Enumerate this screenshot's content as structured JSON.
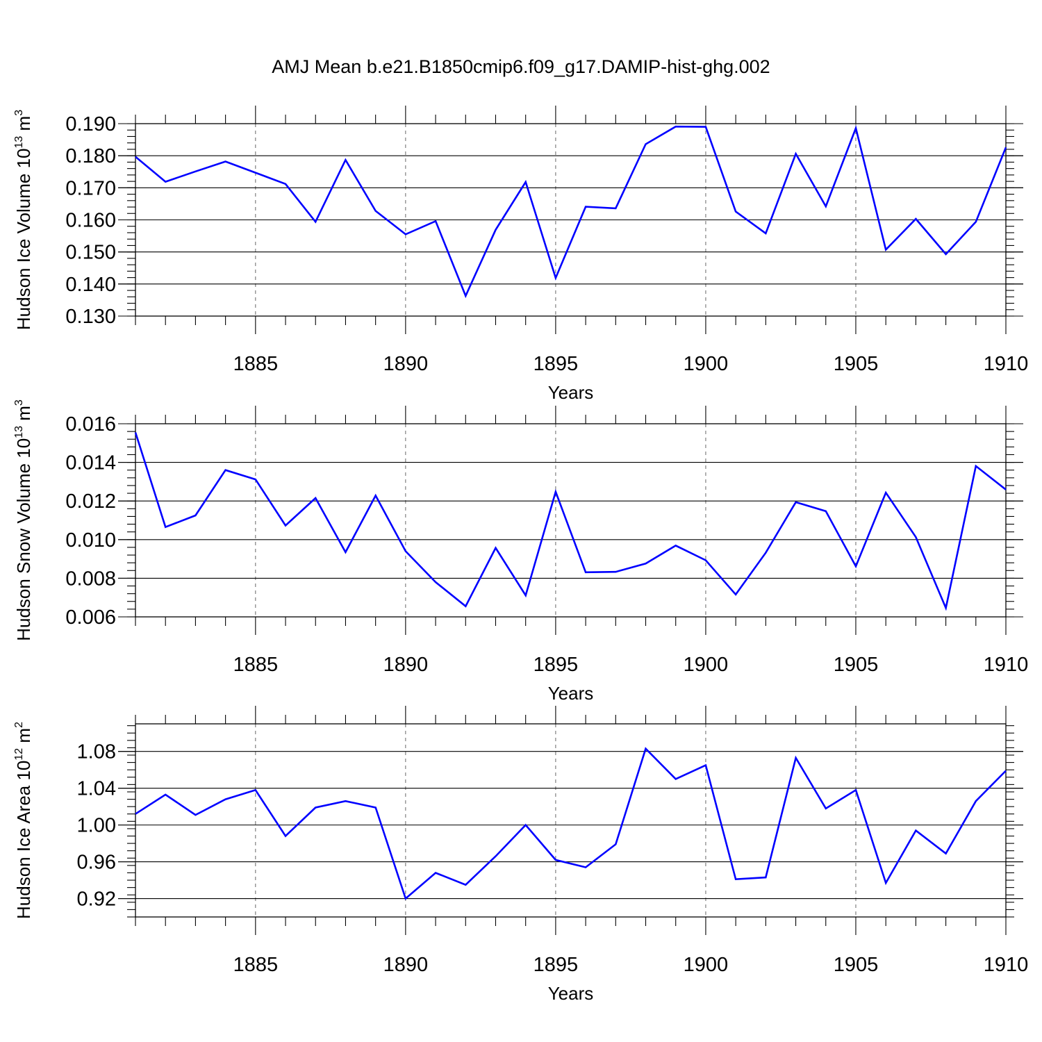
{
  "figure": {
    "title": "AMJ Mean b.e21.B1850cmip6.f09_g17.DAMIP-hist-ghg.002"
  },
  "chart_data": [
    {
      "type": "line",
      "title": "",
      "xlabel": "Years",
      "ylabel": "Hudson Ice Volume 10",
      "ylabel_sup": "13",
      "ylabel_unit": "m",
      "ylabel_unit_sup": "3",
      "xlim": [
        1881,
        1910
      ],
      "ylim": [
        0.13,
        0.19
      ],
      "x_ticks": [
        1885,
        1890,
        1895,
        1900,
        1905,
        1910
      ],
      "x_tick_labels": [
        "1885",
        "1890",
        "1895",
        "1900",
        "1905",
        "1910"
      ],
      "y_ticks": [
        0.13,
        0.14,
        0.15,
        0.16,
        0.17,
        0.18,
        0.19
      ],
      "y_tick_labels": [
        "0.130",
        "0.140",
        "0.150",
        "0.160",
        "0.170",
        "0.180",
        "0.190"
      ],
      "y_minor_step": 0.002,
      "grid": "vertical dashed at major x ticks",
      "color": "#0000ff",
      "x": [
        1881,
        1882,
        1883,
        1884,
        1885,
        1886,
        1887,
        1888,
        1889,
        1890,
        1891,
        1892,
        1893,
        1894,
        1895,
        1896,
        1897,
        1898,
        1899,
        1900,
        1901,
        1902,
        1903,
        1904,
        1905,
        1906,
        1907,
        1908,
        1909,
        1910
      ],
      "y": [
        0.1797,
        0.1719,
        0.1751,
        0.1782,
        0.1747,
        0.1712,
        0.1594,
        0.1787,
        0.1628,
        0.1555,
        0.1596,
        0.1363,
        0.1569,
        0.1718,
        0.1419,
        0.1641,
        0.1636,
        0.1836,
        0.1891,
        0.189,
        0.1626,
        0.1558,
        0.1806,
        0.1642,
        0.1886,
        0.1507,
        0.1603,
        0.1493,
        0.1594,
        0.1826
      ]
    },
    {
      "type": "line",
      "title": "",
      "xlabel": "Years",
      "ylabel": "Hudson Snow Volume 10",
      "ylabel_sup": "13",
      "ylabel_unit": "m",
      "ylabel_unit_sup": "3",
      "xlim": [
        1881,
        1910
      ],
      "ylim": [
        0.006,
        0.016
      ],
      "x_ticks": [
        1885,
        1890,
        1895,
        1900,
        1905,
        1910
      ],
      "x_tick_labels": [
        "1885",
        "1890",
        "1895",
        "1900",
        "1905",
        "1910"
      ],
      "y_ticks": [
        0.006,
        0.008,
        0.01,
        0.012,
        0.014,
        0.016
      ],
      "y_tick_labels": [
        "0.006",
        "0.008",
        "0.010",
        "0.012",
        "0.014",
        "0.016"
      ],
      "y_minor_step": 0.0004,
      "grid": "vertical dashed at major x ticks",
      "color": "#0000ff",
      "x": [
        1881,
        1882,
        1883,
        1884,
        1885,
        1886,
        1887,
        1888,
        1889,
        1890,
        1891,
        1892,
        1893,
        1894,
        1895,
        1896,
        1897,
        1898,
        1899,
        1900,
        1901,
        1902,
        1903,
        1904,
        1905,
        1906,
        1907,
        1908,
        1909,
        1910
      ],
      "y": [
        0.01555,
        0.01065,
        0.01125,
        0.0136,
        0.01312,
        0.01073,
        0.01215,
        0.00935,
        0.01228,
        0.0094,
        0.0078,
        0.00655,
        0.00957,
        0.00711,
        0.01248,
        0.00831,
        0.00833,
        0.00876,
        0.00969,
        0.00893,
        0.00716,
        0.00932,
        0.01194,
        0.01147,
        0.00862,
        0.01243,
        0.01013,
        0.00646,
        0.01381,
        0.01259
      ]
    },
    {
      "type": "line",
      "title": "",
      "xlabel": "Years",
      "ylabel": "Hudson Ice Area 10",
      "ylabel_sup": "12",
      "ylabel_unit": "m",
      "ylabel_unit_sup": "2",
      "xlim": [
        1881,
        1910
      ],
      "ylim": [
        0.9,
        1.11
      ],
      "x_ticks": [
        1885,
        1890,
        1895,
        1900,
        1905,
        1910
      ],
      "x_tick_labels": [
        "1885",
        "1890",
        "1895",
        "1900",
        "1905",
        "1910"
      ],
      "y_ticks": [
        0.92,
        0.96,
        1.0,
        1.04,
        1.08
      ],
      "y_tick_labels": [
        "0.92",
        "0.96",
        "1.00",
        "1.04",
        "1.08"
      ],
      "y_minor_step": 0.008,
      "grid": "vertical dashed at major x ticks",
      "color": "#0000ff",
      "x": [
        1881,
        1882,
        1883,
        1884,
        1885,
        1886,
        1887,
        1888,
        1889,
        1890,
        1891,
        1892,
        1893,
        1894,
        1895,
        1896,
        1897,
        1898,
        1899,
        1900,
        1901,
        1902,
        1903,
        1904,
        1905,
        1906,
        1907,
        1908,
        1909,
        1910
      ],
      "y": [
        1.012,
        1.033,
        1.011,
        1.028,
        1.038,
        0.988,
        1.019,
        1.026,
        1.019,
        0.92,
        0.948,
        0.935,
        0.966,
        1.0,
        0.962,
        0.954,
        0.979,
        1.083,
        1.05,
        1.065,
        0.941,
        0.943,
        1.073,
        1.018,
        1.038,
        0.937,
        0.994,
        0.969,
        1.026,
        1.059
      ]
    }
  ]
}
